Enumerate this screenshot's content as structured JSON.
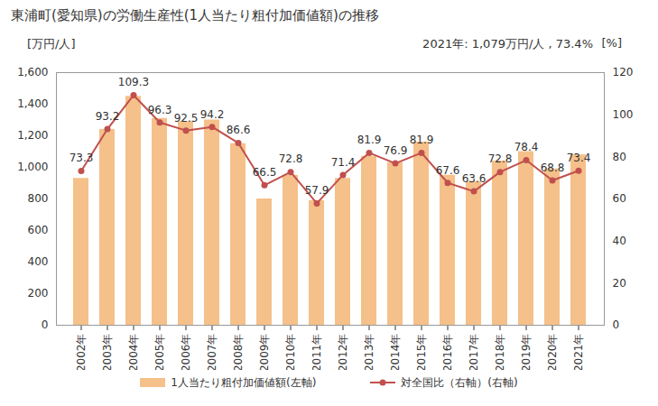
{
  "chart_data": {
    "type": "bar",
    "title": "東浦町(愛知県)の労働生産性(1人当たり粗付加価値額)の推移",
    "annotation": "2021年: 1,079万円/人 , 73.4%",
    "y_label": "[万円/人]",
    "y2_label": "[%]",
    "categories": [
      "2002年",
      "2003年",
      "2004年",
      "2005年",
      "2006年",
      "2007年",
      "2008年",
      "2009年",
      "2010年",
      "2011年",
      "2012年",
      "2013年",
      "2014年",
      "2015年",
      "2016年",
      "2017年",
      "2018年",
      "2019年",
      "2020年",
      "2021年"
    ],
    "series": [
      {
        "name": "1人当たり粗付加価値額(左軸)",
        "type": "bar",
        "color": "#f5c08a",
        "values": [
          930,
          1240,
          1450,
          1310,
          1290,
          1300,
          1150,
          800,
          950,
          790,
          930,
          1070,
          1030,
          1160,
          950,
          910,
          1040,
          1100,
          990,
          1079
        ]
      },
      {
        "name": "対全国比（右軸）(右軸)",
        "type": "line",
        "axis": "y2",
        "color": "#c0504d",
        "marker": "circle",
        "line_style": "solid",
        "data_labels": true,
        "values": [
          73.3,
          93.2,
          109.3,
          96.3,
          92.5,
          94.2,
          86.6,
          66.5,
          72.8,
          57.9,
          71.4,
          81.9,
          76.9,
          81.9,
          67.6,
          63.6,
          72.8,
          78.4,
          68.8,
          73.4
        ]
      }
    ],
    "ylim": [
      0,
      1600
    ],
    "yticks": [
      0,
      200,
      400,
      600,
      800,
      {
        "value": 1000,
        "label": "1,000"
      },
      {
        "value": 1200,
        "label": "1,200"
      },
      {
        "value": 1400,
        "label": "1,400"
      },
      {
        "value": 1600,
        "label": "1,600"
      }
    ],
    "y2lim": [
      0,
      120
    ],
    "y2ticks": [
      0,
      20,
      40,
      60,
      80,
      100,
      120
    ],
    "grid": false
  }
}
